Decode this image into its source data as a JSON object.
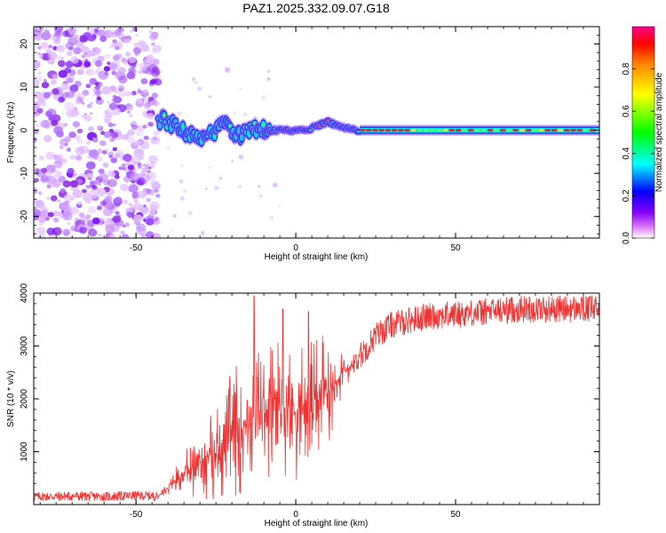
{
  "title": "PAZ1.2025.332.09.07.G18",
  "chart_data": [
    {
      "type": "heatmap",
      "description_hidden": true,
      "xlabel": "Height of straight line (km)",
      "ylabel": "Frequency (Hz)",
      "xlim": [
        -82,
        95
      ],
      "ylim": [
        -25,
        24
      ],
      "xticks": [
        -50,
        0,
        50
      ],
      "yticks": [
        -20,
        -10,
        0,
        10,
        20
      ],
      "colorbar": {
        "label": "Normalized spectral amplitude",
        "range": [
          0,
          1
        ],
        "ticks": [
          0.0,
          0.2,
          0.4,
          0.6,
          0.8
        ]
      },
      "features": {
        "noise_region_x": [
          -82,
          -43
        ],
        "signal_start_x": -43,
        "signal_frequency_track": [
          {
            "x": -43,
            "f": 2.5
          },
          {
            "x": -38,
            "f": 1.5
          },
          {
            "x": -34,
            "f": -1.0
          },
          {
            "x": -30,
            "f": -1.5
          },
          {
            "x": -26,
            "f": -0.5
          },
          {
            "x": -22,
            "f": 1.5
          },
          {
            "x": -18,
            "f": -1.5
          },
          {
            "x": -14,
            "f": 0.5
          },
          {
            "x": -8,
            "f": 0.0
          },
          {
            "x": 0,
            "f": 0.0
          },
          {
            "x": 5,
            "f": 0.5
          },
          {
            "x": 10,
            "f": 2.0
          },
          {
            "x": 15,
            "f": 0.5
          },
          {
            "x": 20,
            "f": 0.0
          },
          {
            "x": 95,
            "f": 0.0
          }
        ]
      }
    },
    {
      "type": "line",
      "xlabel": "Height of straight line (km)",
      "ylabel": "SNR (10 * v/v)",
      "xlim": [
        -82,
        95
      ],
      "ylim": [
        0,
        4000
      ],
      "xticks": [
        -50,
        0,
        50
      ],
      "yticks": [
        1000,
        2000,
        3000,
        4000
      ],
      "color": "#ee3333",
      "series": [
        {
          "name": "SNR",
          "x": [
            -82,
            -70,
            -60,
            -50,
            -43,
            -40,
            -35,
            -30,
            -25,
            -20,
            -15,
            -10,
            -5,
            0,
            5,
            10,
            15,
            20,
            25,
            30,
            40,
            50,
            60,
            70,
            80,
            95
          ],
          "values": [
            150,
            160,
            150,
            170,
            160,
            350,
            600,
            800,
            1000,
            1300,
            1600,
            1800,
            1900,
            1800,
            1900,
            2200,
            2500,
            2800,
            3200,
            3400,
            3550,
            3600,
            3650,
            3700,
            3700,
            3700
          ]
        }
      ],
      "peaks": [
        {
          "x": -13,
          "y": 3950
        },
        {
          "x": -4,
          "y": 3700
        },
        {
          "x": 4,
          "y": 3650
        }
      ]
    }
  ]
}
